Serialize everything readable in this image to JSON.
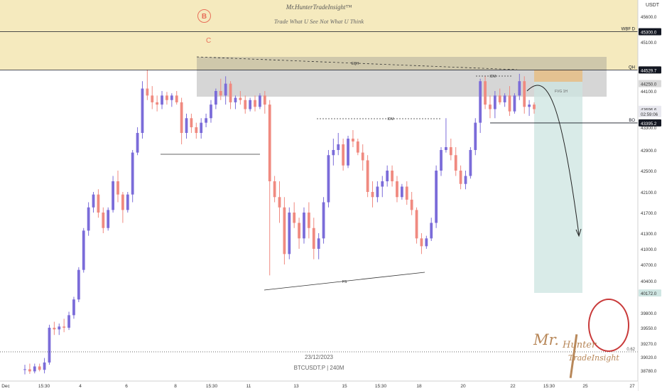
{
  "brand": {
    "title": "Mr.HunterTradeInsight™",
    "tagline": "Trade What U See Not What U Think",
    "signature_line1": "Mr.",
    "signature_line2": "Hunter",
    "signature_line3": "TradeInsight"
  },
  "wave_labels": {
    "circled": "B",
    "plain": "C"
  },
  "axis": {
    "currency": "USDT",
    "price_ticks": [
      45600.0,
      45100.0,
      44100.0,
      43300.0,
      42900.0,
      42500.0,
      42100.0,
      41700.0,
      41300.0,
      41000.0,
      40700.0,
      40400.0,
      39800.0,
      39550.0,
      39270.0,
      39020.0,
      38780.0
    ],
    "price_tick_labels": [
      "45600.0",
      "45100.0",
      "44100.0",
      "43300.0",
      "42900.0",
      "42500.0",
      "42100.0",
      "41700.0",
      "41300.0",
      "41000.0",
      "40700.0",
      "40400.0",
      "39800.0",
      "39550.0",
      "39270.0",
      "39020.0",
      "38780.0"
    ],
    "time_labels": [
      "Dec",
      "15:30",
      "4",
      "6",
      "8",
      "15:30",
      "11",
      "13",
      "15",
      "15:30",
      "18",
      "20",
      "22",
      "15:30",
      "25",
      "27"
    ],
    "highlighted_prices": [
      {
        "label": "45300.0",
        "price": 45300.0,
        "bg": "#131722",
        "fg": "#ffffff"
      },
      {
        "label": "44530.0",
        "price": 44530.0,
        "bg": "#f7e7b9",
        "fg": "#333333"
      },
      {
        "label": "44529.7",
        "price": 44529.7,
        "bg": "#131722",
        "fg": "#ffffff"
      },
      {
        "label": "44250.0",
        "price": 44250.0,
        "bg": "#d9d9d9",
        "fg": "#333333"
      },
      {
        "label": "43696.6",
        "price": 43696.6,
        "bg": "#e8e8ef",
        "fg": "#333333"
      },
      {
        "label": "02:59:06",
        "price": 43600.0,
        "bg": "#e8e8ef",
        "fg": "#333333"
      },
      {
        "label": "43395.2",
        "price": 43395.2,
        "bg": "#131722",
        "fg": "#ffffff"
      },
      {
        "label": "40172.0",
        "price": 40172.0,
        "bg": "#cfe6e3",
        "fg": "#333333"
      }
    ]
  },
  "levels": [
    {
      "label": "WBF D",
      "price": 45300.0,
      "color": "#131722"
    },
    {
      "label": "QH",
      "price": 44529.7,
      "color": "#131722"
    },
    {
      "label": "BO",
      "price": 43395.2,
      "color": "#131722"
    },
    {
      "label": "0.62",
      "price": 39113.0,
      "color": "#555555",
      "dotted": true
    }
  ],
  "zone_labels": [
    "EQH",
    "IDM",
    "IDM",
    "FS",
    "FVG 1H",
    "BO"
  ],
  "footer": {
    "date": "23/12/2023",
    "symbol": "BTCUSDT.P | 240M"
  },
  "colors": {
    "bull": "#7b6cd9",
    "bear": "#f08a80",
    "supply_zone": "#f3e6b3",
    "premium_band": "#e2e2e2",
    "target_zone": "#cce4e0",
    "fvg_zone": "#e6c08a"
  },
  "chart_data": {
    "type": "candlestick",
    "y_unit": "USDT",
    "timeframe": "240M",
    "ylim": [
      38580,
      45900
    ],
    "candles": [
      [
        38790,
        38880,
        38700,
        38800
      ],
      [
        38800,
        38900,
        38710,
        38760
      ],
      [
        38760,
        38900,
        38720,
        38850
      ],
      [
        38850,
        38900,
        38760,
        38790
      ],
      [
        38790,
        39000,
        38720,
        38920
      ],
      [
        38920,
        39600,
        38880,
        39550
      ],
      [
        39550,
        39650,
        39420,
        39520
      ],
      [
        39520,
        39620,
        39420,
        39570
      ],
      [
        39570,
        39700,
        39470,
        39550
      ],
      [
        39550,
        39820,
        39510,
        39760
      ],
      [
        39760,
        40100,
        39700,
        40050
      ],
      [
        40050,
        40650,
        40000,
        40600
      ],
      [
        40600,
        41400,
        40550,
        41350
      ],
      [
        41350,
        41900,
        41250,
        41800
      ],
      [
        41800,
        42100,
        41700,
        42050
      ],
      [
        42050,
        42150,
        41600,
        41700
      ],
      [
        41700,
        41800,
        41300,
        41400
      ],
      [
        41400,
        41800,
        41350,
        41750
      ],
      [
        41750,
        42400,
        41700,
        42300
      ],
      [
        42300,
        42500,
        41900,
        42050
      ],
      [
        42050,
        42100,
        41500,
        41750
      ],
      [
        41750,
        42100,
        41700,
        42050
      ],
      [
        42050,
        42900,
        41900,
        42850
      ],
      [
        42850,
        43300,
        42800,
        43200
      ],
      [
        43200,
        44300,
        43100,
        44150
      ],
      [
        44150,
        44530,
        43900,
        44000
      ],
      [
        44000,
        44200,
        43700,
        43850
      ],
      [
        43850,
        44000,
        43650,
        43800
      ],
      [
        43800,
        44100,
        43700,
        44000
      ],
      [
        44000,
        44080,
        43800,
        43900
      ],
      [
        43900,
        44050,
        43750,
        44000
      ],
      [
        44000,
        44100,
        43800,
        43850
      ],
      [
        43850,
        43950,
        43000,
        43200
      ],
      [
        43200,
        43600,
        43100,
        43500
      ],
      [
        43500,
        43600,
        43200,
        43300
      ],
      [
        43300,
        43400,
        43100,
        43200
      ],
      [
        43200,
        43500,
        43100,
        43400
      ],
      [
        43400,
        43600,
        43300,
        43500
      ],
      [
        43500,
        43900,
        43400,
        43800
      ],
      [
        43800,
        44150,
        43700,
        44100
      ],
      [
        44100,
        44350,
        43900,
        44000
      ],
      [
        44000,
        44400,
        43800,
        44250
      ],
      [
        44250,
        44300,
        43700,
        43850
      ],
      [
        43850,
        44000,
        43700,
        43950
      ],
      [
        43950,
        44100,
        43800,
        43900
      ],
      [
        43900,
        44000,
        43600,
        43700
      ],
      [
        43700,
        43950,
        43650,
        43900
      ],
      [
        43900,
        44000,
        43650,
        43750
      ],
      [
        43750,
        44050,
        43700,
        44000
      ],
      [
        44000,
        44100,
        43600,
        43800
      ],
      [
        43800,
        43900,
        40500,
        42300
      ],
      [
        42300,
        42400,
        41900,
        42000
      ],
      [
        42000,
        42300,
        41500,
        41800
      ],
      [
        41800,
        42000,
        40700,
        40900
      ],
      [
        40900,
        41800,
        40800,
        41700
      ],
      [
        41700,
        41900,
        41400,
        41500
      ],
      [
        41500,
        41600,
        41000,
        41200
      ],
      [
        41200,
        41800,
        41100,
        41700
      ],
      [
        41700,
        41900,
        41200,
        41400
      ],
      [
        41400,
        41600,
        40800,
        41000
      ],
      [
        41000,
        41300,
        40800,
        41200
      ],
      [
        41200,
        42000,
        41100,
        41900
      ],
      [
        41900,
        42900,
        41800,
        42800
      ],
      [
        42800,
        43100,
        42600,
        42900
      ],
      [
        42900,
        43200,
        42800,
        43000
      ],
      [
        43000,
        43100,
        42500,
        42600
      ],
      [
        42600,
        43150,
        42550,
        43100
      ],
      [
        43100,
        43250,
        42950,
        43050
      ],
      [
        43050,
        43100,
        42800,
        42850
      ],
      [
        42850,
        43000,
        42500,
        42700
      ],
      [
        42700,
        42800,
        42000,
        42100
      ],
      [
        42100,
        42300,
        41800,
        42000
      ],
      [
        42000,
        42300,
        41900,
        42200
      ],
      [
        42200,
        42400,
        42000,
        42300
      ],
      [
        42300,
        42600,
        42200,
        42500
      ],
      [
        42500,
        42600,
        42200,
        42300
      ],
      [
        42300,
        42400,
        41900,
        42000
      ],
      [
        42000,
        42250,
        41950,
        42200
      ],
      [
        42200,
        42300,
        41850,
        41950
      ],
      [
        41950,
        42100,
        41650,
        41750
      ],
      [
        41750,
        41800,
        41100,
        41200
      ],
      [
        41200,
        41300,
        40900,
        41050
      ],
      [
        41050,
        41250,
        41000,
        41200
      ],
      [
        41200,
        41600,
        41150,
        41500
      ],
      [
        41500,
        42600,
        41400,
        42500
      ],
      [
        42500,
        42950,
        42400,
        42900
      ],
      [
        42900,
        43500,
        42850,
        42950
      ],
      [
        42950,
        43100,
        42700,
        42800
      ],
      [
        42800,
        42950,
        42400,
        42500
      ],
      [
        42500,
        42600,
        42150,
        42250
      ],
      [
        42250,
        42500,
        42150,
        42400
      ],
      [
        42400,
        42950,
        42350,
        42900
      ],
      [
        42900,
        43500,
        42800,
        43400
      ],
      [
        43400,
        44350,
        43200,
        44300
      ],
      [
        44300,
        44400,
        43700,
        43800
      ],
      [
        43800,
        44000,
        43500,
        43700
      ],
      [
        43700,
        44100,
        43500,
        44000
      ],
      [
        44000,
        44150,
        43800,
        43850
      ],
      [
        43850,
        44050,
        43750,
        44000
      ],
      [
        44000,
        44200,
        43550,
        43650
      ],
      [
        43650,
        44050,
        43600,
        44000
      ],
      [
        44000,
        44450,
        43900,
        44300
      ],
      [
        44300,
        44400,
        43600,
        43750
      ],
      [
        43750,
        43900,
        43550,
        43800
      ],
      [
        43800,
        43850,
        43600,
        43700
      ]
    ],
    "zones": [
      {
        "name": "WBF D",
        "price_from": 44530,
        "price_to": 45900
      },
      {
        "name": "premium",
        "price_from": 43600,
        "price_to": 44530
      },
      {
        "name": "FVG 1H",
        "price_from": 44250,
        "price_to": 44530
      },
      {
        "name": "target",
        "price_from": 40172,
        "price_to": 44250
      }
    ],
    "annotations": [
      "EQH",
      "IDM",
      "IDM",
      "FS",
      "FVG 1H",
      "BO",
      "0.62"
    ],
    "projection": "down from 44150 toward 41300"
  }
}
